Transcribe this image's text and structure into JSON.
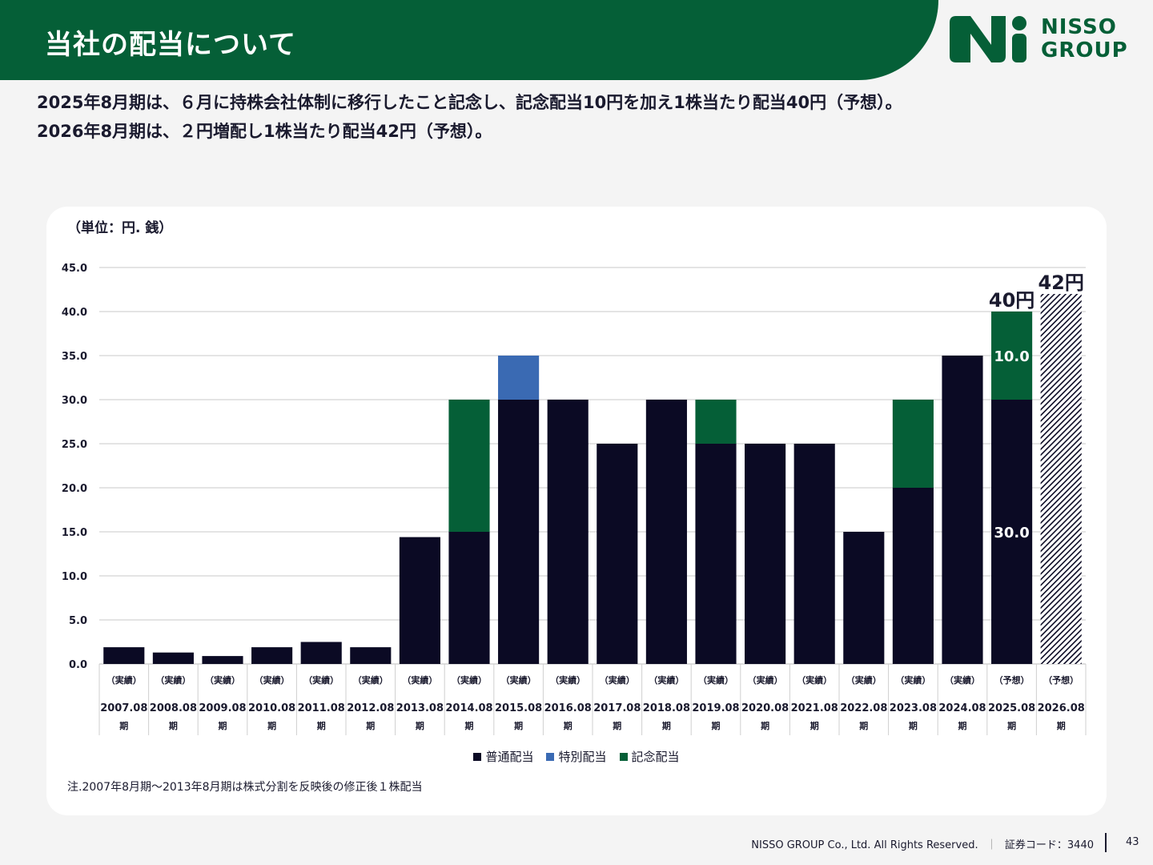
{
  "header": {
    "title": "当社の配当について",
    "logo_text": [
      "NISSO",
      "GROUP"
    ],
    "brand_color": "#055f37"
  },
  "summary": {
    "line1": "2025年8月期は、６月に持株会社体制に移行したこと記念し、記念配当10円を加え1株当たり配当40円（予想）。",
    "line2": "2026年8月期は、２円増配し1株当たり配当42円（予想）。"
  },
  "chart_data": {
    "type": "bar",
    "stacked": true,
    "unit_label": "（単位：円. 銭）",
    "ylim": [
      0,
      45
    ],
    "yticks": [
      "0.0",
      "5.0",
      "10.0",
      "15.0",
      "20.0",
      "25.0",
      "30.0",
      "35.0",
      "40.0",
      "45.0"
    ],
    "grid": true,
    "legend_position": "bottom",
    "categories": [
      {
        "status": "（実績）",
        "period": "2007.08",
        "suffix": "期"
      },
      {
        "status": "（実績）",
        "period": "2008.08",
        "suffix": "期"
      },
      {
        "status": "（実績）",
        "period": "2009.08",
        "suffix": "期"
      },
      {
        "status": "（実績）",
        "period": "2010.08",
        "suffix": "期"
      },
      {
        "status": "（実績）",
        "period": "2011.08",
        "suffix": "期"
      },
      {
        "status": "（実績）",
        "period": "2012.08",
        "suffix": "期"
      },
      {
        "status": "（実績）",
        "period": "2013.08",
        "suffix": "期"
      },
      {
        "status": "（実績）",
        "period": "2014.08",
        "suffix": "期"
      },
      {
        "status": "（実績）",
        "period": "2015.08",
        "suffix": "期"
      },
      {
        "status": "（実績）",
        "period": "2016.08",
        "suffix": "期"
      },
      {
        "status": "（実績）",
        "period": "2017.08",
        "suffix": "期"
      },
      {
        "status": "（実績）",
        "period": "2018.08",
        "suffix": "期"
      },
      {
        "status": "（実績）",
        "period": "2019.08",
        "suffix": "期"
      },
      {
        "status": "（実績）",
        "period": "2020.08",
        "suffix": "期"
      },
      {
        "status": "（実績）",
        "period": "2021.08",
        "suffix": "期"
      },
      {
        "status": "（実績）",
        "period": "2022.08",
        "suffix": "期"
      },
      {
        "status": "（実績）",
        "period": "2023.08",
        "suffix": "期"
      },
      {
        "status": "（実績）",
        "period": "2024.08",
        "suffix": "期"
      },
      {
        "status": "（予想）",
        "period": "2025.08",
        "suffix": "期"
      },
      {
        "status": "（予想）",
        "period": "2026.08",
        "suffix": "期"
      }
    ],
    "series": [
      {
        "name": "普通配当",
        "color": "#0b0a24",
        "values": [
          1.9,
          1.3,
          0.9,
          1.9,
          2.5,
          1.9,
          14.4,
          15,
          30,
          30,
          25,
          30,
          25,
          25,
          25,
          15,
          20,
          35,
          30,
          0
        ]
      },
      {
        "name": "特別配当",
        "color": "#3a6ab3",
        "values": [
          0,
          0,
          0,
          0,
          0,
          0,
          0,
          0,
          5,
          0,
          0,
          0,
          0,
          0,
          0,
          0,
          0,
          0,
          0,
          0
        ]
      },
      {
        "name": "記念配当",
        "color": "#055f37",
        "values": [
          0,
          0,
          0,
          0,
          0,
          0,
          0,
          15,
          0,
          0,
          0,
          0,
          5,
          0,
          0,
          0,
          10,
          0,
          10,
          0
        ]
      }
    ],
    "forecast_total": {
      "index": 19,
      "value": 42,
      "pattern": "diagonal-hatch"
    },
    "data_labels": [
      {
        "index": 18,
        "text": "30.0",
        "color": "#ffffff",
        "at": 15
      },
      {
        "index": 18,
        "text": "10.0",
        "color": "#ffffff",
        "at": 35
      }
    ],
    "total_labels": [
      {
        "index": 18,
        "text": "40円",
        "at": 40
      },
      {
        "index": 19,
        "text": "42円",
        "at": 42
      }
    ]
  },
  "footnote": "注.2007年8月期～2013年8月期は株式分割を反映後の修正後１株配当",
  "footer": {
    "copyright": "NISSO GROUP Co., Ltd. All Rights Reserved.",
    "separator": "｜",
    "code": "証券コード：3440",
    "page": "43"
  }
}
